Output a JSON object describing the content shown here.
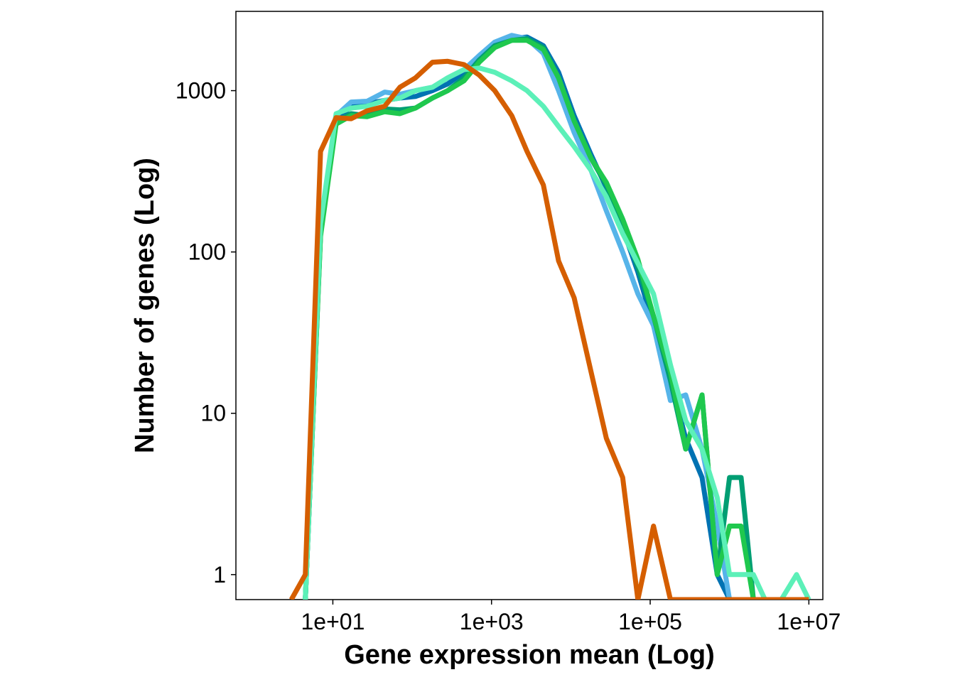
{
  "chart_data": {
    "type": "line",
    "title": "",
    "xlabel": "Gene expression mean (Log)",
    "ylabel": "Number of genes (Log)",
    "x_scale": "log",
    "y_scale": "log",
    "xlim": [
      0.6,
      15000000
    ],
    "ylim": [
      0.7,
      3100
    ],
    "x_ticks": [
      10,
      1000,
      100000,
      10000000
    ],
    "x_tick_labels": [
      "1e+01",
      "1e+03",
      "1e+05",
      "1e+07"
    ],
    "y_ticks": [
      1,
      10,
      100,
      1000
    ],
    "y_tick_labels": [
      "1",
      "10",
      "100",
      "1000"
    ],
    "grid": false,
    "legend": "none",
    "series": [
      {
        "color": "#0072B2",
        "points": [
          [
            4.5,
            0.7
          ],
          [
            7,
            130
          ],
          [
            11,
            650
          ],
          [
            17,
            800
          ],
          [
            27,
            830
          ],
          [
            45,
            870
          ],
          [
            70,
            900
          ],
          [
            110,
            920
          ],
          [
            180,
            1000
          ],
          [
            280,
            1100
          ],
          [
            450,
            1300
          ],
          [
            700,
            1600
          ],
          [
            1100,
            1900
          ],
          [
            1800,
            2100
          ],
          [
            2800,
            2150
          ],
          [
            4500,
            1900
          ],
          [
            7000,
            1300
          ],
          [
            11000,
            700
          ],
          [
            18000,
            400
          ],
          [
            28000,
            250
          ],
          [
            45000,
            140
          ],
          [
            70000,
            75
          ],
          [
            110000,
            35
          ],
          [
            180000,
            16
          ],
          [
            280000,
            7
          ],
          [
            450000,
            4
          ],
          [
            700000,
            1
          ],
          [
            1000000,
            0.7
          ]
        ]
      },
      {
        "color": "#56B4E9",
        "points": [
          [
            4.5,
            0.7
          ],
          [
            7,
            140
          ],
          [
            11,
            700
          ],
          [
            17,
            850
          ],
          [
            27,
            860
          ],
          [
            45,
            980
          ],
          [
            70,
            950
          ],
          [
            110,
            1000
          ],
          [
            180,
            1050
          ],
          [
            280,
            1200
          ],
          [
            450,
            1350
          ],
          [
            700,
            1650
          ],
          [
            1100,
            2000
          ],
          [
            1800,
            2200
          ],
          [
            2800,
            2100
          ],
          [
            4500,
            1700
          ],
          [
            7000,
            1000
          ],
          [
            11000,
            550
          ],
          [
            18000,
            320
          ],
          [
            28000,
            180
          ],
          [
            45000,
            100
          ],
          [
            70000,
            55
          ],
          [
            110000,
            35
          ],
          [
            180000,
            12
          ],
          [
            280000,
            13
          ],
          [
            450000,
            6
          ],
          [
            700000,
            2
          ],
          [
            1000000,
            0.7
          ]
        ]
      },
      {
        "color": "#009E73",
        "points": [
          [
            4.5,
            0.7
          ],
          [
            7,
            130
          ],
          [
            11,
            640
          ],
          [
            17,
            720
          ],
          [
            27,
            700
          ],
          [
            45,
            770
          ],
          [
            70,
            760
          ],
          [
            110,
            780
          ],
          [
            180,
            900
          ],
          [
            280,
            1000
          ],
          [
            450,
            1200
          ],
          [
            700,
            1550
          ],
          [
            1100,
            1900
          ],
          [
            1800,
            2050
          ],
          [
            2800,
            2100
          ],
          [
            4500,
            1850
          ],
          [
            7000,
            1200
          ],
          [
            11000,
            650
          ],
          [
            18000,
            380
          ],
          [
            28000,
            260
          ],
          [
            45000,
            150
          ],
          [
            70000,
            80
          ],
          [
            110000,
            40
          ],
          [
            180000,
            16
          ],
          [
            280000,
            6
          ],
          [
            450000,
            13
          ],
          [
            700000,
            1
          ],
          [
            1000000,
            4
          ],
          [
            1400000,
            4
          ],
          [
            2000000,
            0.7
          ]
        ]
      },
      {
        "color": "#1FC84E",
        "points": [
          [
            4.5,
            0.7
          ],
          [
            7,
            125
          ],
          [
            11,
            620
          ],
          [
            17,
            700
          ],
          [
            27,
            690
          ],
          [
            45,
            740
          ],
          [
            70,
            720
          ],
          [
            110,
            780
          ],
          [
            180,
            900
          ],
          [
            280,
            1000
          ],
          [
            450,
            1150
          ],
          [
            700,
            1500
          ],
          [
            1100,
            1850
          ],
          [
            1800,
            2050
          ],
          [
            2800,
            2050
          ],
          [
            4500,
            1800
          ],
          [
            7000,
            1200
          ],
          [
            11000,
            650
          ],
          [
            18000,
            380
          ],
          [
            28000,
            270
          ],
          [
            45000,
            160
          ],
          [
            70000,
            90
          ],
          [
            110000,
            40
          ],
          [
            180000,
            18
          ],
          [
            280000,
            6
          ],
          [
            450000,
            13
          ],
          [
            700000,
            1
          ],
          [
            1000000,
            2
          ],
          [
            1400000,
            2
          ],
          [
            2000000,
            0.7
          ]
        ]
      },
      {
        "color": "#5CF0B8",
        "points": [
          [
            4.5,
            0.7
          ],
          [
            7,
            150
          ],
          [
            11,
            720
          ],
          [
            17,
            780
          ],
          [
            27,
            800
          ],
          [
            45,
            870
          ],
          [
            70,
            900
          ],
          [
            110,
            1000
          ],
          [
            180,
            1050
          ],
          [
            280,
            1200
          ],
          [
            450,
            1350
          ],
          [
            700,
            1380
          ],
          [
            1100,
            1300
          ],
          [
            1800,
            1150
          ],
          [
            2800,
            1000
          ],
          [
            4500,
            800
          ],
          [
            7000,
            600
          ],
          [
            11000,
            450
          ],
          [
            18000,
            320
          ],
          [
            28000,
            220
          ],
          [
            45000,
            130
          ],
          [
            70000,
            85
          ],
          [
            110000,
            55
          ],
          [
            180000,
            20
          ],
          [
            280000,
            9
          ],
          [
            450000,
            6
          ],
          [
            700000,
            3
          ],
          [
            1000000,
            1
          ],
          [
            1400000,
            1
          ],
          [
            2000000,
            1
          ],
          [
            2800000,
            0.7
          ],
          [
            4500000,
            0.7
          ],
          [
            7000000,
            1
          ],
          [
            10000000,
            0.7
          ]
        ]
      },
      {
        "color": "#D55E00",
        "points": [
          [
            3,
            0.7
          ],
          [
            4.5,
            1
          ],
          [
            7,
            420
          ],
          [
            11,
            680
          ],
          [
            17,
            670
          ],
          [
            27,
            750
          ],
          [
            45,
            800
          ],
          [
            70,
            1050
          ],
          [
            110,
            1200
          ],
          [
            180,
            1500
          ],
          [
            280,
            1520
          ],
          [
            450,
            1450
          ],
          [
            700,
            1250
          ],
          [
            1100,
            1000
          ],
          [
            1800,
            700
          ],
          [
            2800,
            420
          ],
          [
            4500,
            260
          ],
          [
            7000,
            88
          ],
          [
            11000,
            52
          ],
          [
            18000,
            18
          ],
          [
            28000,
            7
          ],
          [
            45000,
            4
          ],
          [
            70000,
            0.7
          ],
          [
            110000,
            2
          ],
          [
            180000,
            0.7
          ],
          [
            10000000,
            0.7
          ]
        ]
      }
    ]
  }
}
